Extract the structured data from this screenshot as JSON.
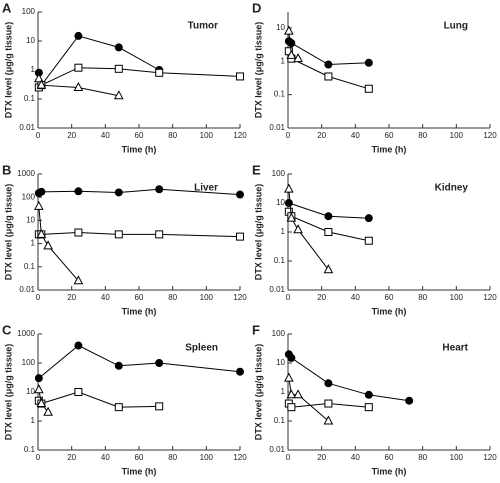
{
  "chart_data": [
    {
      "type": "line",
      "panel": "A",
      "title": "Tumor",
      "xlabel": "Time (h)",
      "ylabel": "DTX level (μg/g tissue)",
      "log_y": true,
      "xlim": [
        0,
        120
      ],
      "xticks": [
        0,
        20,
        40,
        60,
        80,
        100,
        120
      ],
      "ylim": [
        0.01,
        100
      ],
      "yticks": [
        0.01,
        0.1,
        1,
        10,
        100
      ],
      "series": [
        {
          "marker": "circle",
          "color": "#000000",
          "x": [
            0.5,
            2,
            24,
            48,
            72
          ],
          "values": [
            0.8,
            0.3,
            15,
            6,
            1
          ]
        },
        {
          "marker": "square",
          "color": "#000000",
          "x": [
            0.5,
            2,
            24,
            48,
            72,
            120
          ],
          "values": [
            0.25,
            0.3,
            1.2,
            1.1,
            0.8,
            0.6
          ]
        },
        {
          "marker": "triangle",
          "color": "#000000",
          "x": [
            0.5,
            2,
            24,
            48
          ],
          "values": [
            0.5,
            0.3,
            0.25,
            0.13
          ]
        }
      ]
    },
    {
      "type": "line",
      "panel": "B",
      "title": "Liver",
      "xlabel": "Time (h)",
      "ylabel": "DTX level (μg/g tissue)",
      "log_y": true,
      "xlim": [
        0,
        120
      ],
      "xticks": [
        0,
        20,
        40,
        60,
        80,
        100,
        120
      ],
      "ylim": [
        0.01,
        1000
      ],
      "yticks": [
        0.01,
        0.1,
        1,
        10,
        100,
        1000
      ],
      "series": [
        {
          "marker": "circle",
          "color": "#000000",
          "x": [
            0.5,
            2,
            24,
            48,
            72,
            120
          ],
          "values": [
            150,
            170,
            180,
            160,
            220,
            130
          ]
        },
        {
          "marker": "square",
          "color": "#000000",
          "x": [
            0.5,
            2,
            24,
            48,
            72,
            120
          ],
          "values": [
            2.5,
            2.5,
            3,
            2.5,
            2.5,
            2
          ]
        },
        {
          "marker": "triangle",
          "color": "#000000",
          "x": [
            0.5,
            2,
            6,
            24
          ],
          "values": [
            40,
            2.5,
            0.8,
            0.025
          ]
        }
      ]
    },
    {
      "type": "line",
      "panel": "C",
      "title": "Spleen",
      "xlabel": "Time (h)",
      "ylabel": "DTX level (μg/g tissue)",
      "log_y": true,
      "xlim": [
        0,
        120
      ],
      "xticks": [
        0,
        20,
        40,
        60,
        80,
        100,
        120
      ],
      "ylim": [
        0.1,
        1000
      ],
      "yticks": [
        0.1,
        1,
        10,
        100,
        1000
      ],
      "series": [
        {
          "marker": "circle",
          "color": "#000000",
          "x": [
            0.5,
            24,
            48,
            72,
            120
          ],
          "values": [
            30,
            400,
            80,
            100,
            50
          ]
        },
        {
          "marker": "square",
          "color": "#000000",
          "x": [
            0.5,
            2,
            24,
            48,
            72
          ],
          "values": [
            5,
            4,
            10,
            3,
            3.2
          ]
        },
        {
          "marker": "triangle",
          "color": "#000000",
          "x": [
            0.5,
            2,
            6
          ],
          "values": [
            12,
            4,
            2
          ]
        }
      ]
    },
    {
      "type": "line",
      "panel": "D",
      "title": "Lung",
      "xlabel": "Time (h)",
      "ylabel": "DTX level (μg/g tissue)",
      "log_y": true,
      "xlim": [
        0,
        120
      ],
      "xticks": [
        0,
        20,
        40,
        60,
        80,
        100,
        120
      ],
      "ylim": [
        0.01,
        30
      ],
      "yticks": [
        0.01,
        0.1,
        1,
        10
      ],
      "series": [
        {
          "marker": "circle",
          "color": "#000000",
          "x": [
            0.5,
            2,
            24,
            48
          ],
          "values": [
            4,
            3.5,
            0.8,
            0.9
          ]
        },
        {
          "marker": "square",
          "color": "#000000",
          "x": [
            0.5,
            2,
            24,
            48
          ],
          "values": [
            2,
            1.2,
            0.35,
            0.15
          ]
        },
        {
          "marker": "triangle",
          "color": "#000000",
          "x": [
            0.5,
            2,
            6
          ],
          "values": [
            8,
            1.5,
            1.2
          ]
        }
      ]
    },
    {
      "type": "line",
      "panel": "E",
      "title": "Kidney",
      "xlabel": "Time (h)",
      "ylabel": "DTX level (μg/g tissue)",
      "log_y": true,
      "xlim": [
        0,
        120
      ],
      "xticks": [
        0,
        20,
        40,
        60,
        80,
        100,
        120
      ],
      "ylim": [
        0.01,
        100
      ],
      "yticks": [
        0.01,
        0.1,
        1,
        10,
        100
      ],
      "series": [
        {
          "marker": "circle",
          "color": "#000000",
          "x": [
            0.5,
            24,
            48
          ],
          "values": [
            10,
            3.5,
            3
          ]
        },
        {
          "marker": "square",
          "color": "#000000",
          "x": [
            0.5,
            2,
            24,
            48
          ],
          "values": [
            5,
            3.5,
            1,
            0.5
          ]
        },
        {
          "marker": "triangle",
          "color": "#000000",
          "x": [
            0.5,
            2,
            6,
            24
          ],
          "values": [
            30,
            3,
            1.2,
            0.05
          ]
        }
      ]
    },
    {
      "type": "line",
      "panel": "F",
      "title": "Heart",
      "xlabel": "Time (h)",
      "ylabel": "DTX level (μg/g tissue)",
      "log_y": true,
      "xlim": [
        0,
        120
      ],
      "xticks": [
        0,
        20,
        40,
        60,
        80,
        100,
        120
      ],
      "ylim": [
        0.01,
        100
      ],
      "yticks": [
        0.01,
        0.1,
        1,
        10,
        100
      ],
      "series": [
        {
          "marker": "circle",
          "color": "#000000",
          "x": [
            0.5,
            2,
            24,
            48,
            72
          ],
          "values": [
            20,
            15,
            2,
            0.8,
            0.5
          ]
        },
        {
          "marker": "square",
          "color": "#000000",
          "x": [
            0.5,
            2,
            24,
            48
          ],
          "values": [
            0.4,
            0.3,
            0.4,
            0.3
          ]
        },
        {
          "marker": "triangle",
          "color": "#000000",
          "x": [
            0.5,
            2,
            6,
            24
          ],
          "values": [
            3,
            0.8,
            0.8,
            0.1
          ]
        }
      ]
    }
  ]
}
